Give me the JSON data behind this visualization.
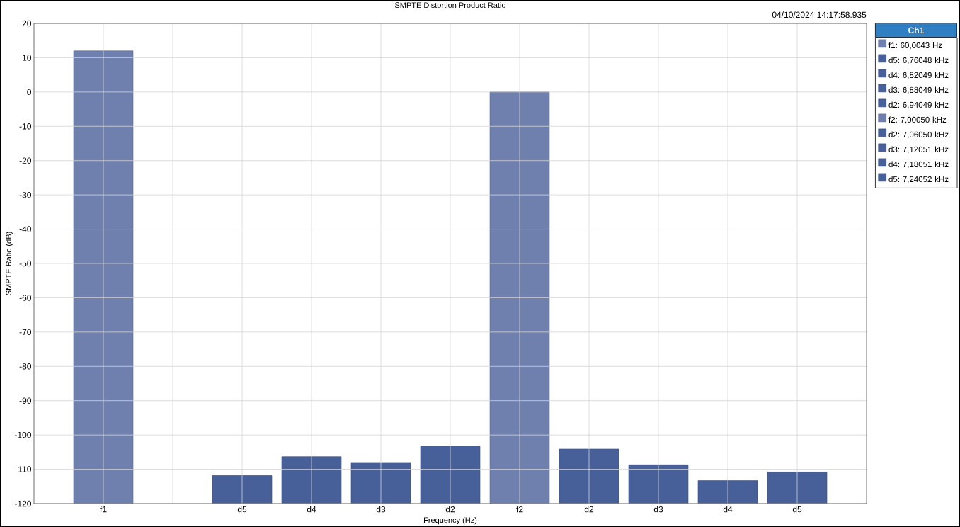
{
  "chart_data": {
    "type": "bar",
    "title": "SMPTE Distortion Product Ratio",
    "xlabel": "Frequency (Hz)",
    "ylabel": "SMPTE Ratio (dB)",
    "legend_title": "Ch1",
    "annotations": [
      "04/10/2024 14:17:58.935"
    ],
    "categories": [
      "f1",
      null,
      "d5",
      "d4",
      "d3",
      "d2",
      "f2",
      "d2",
      "d3",
      "d4",
      "d5"
    ],
    "series": [
      {
        "name": "f1: 60,0043 Hz",
        "color": "#6f80ae",
        "values": [
          132,
          null,
          null,
          null,
          null,
          null,
          null,
          null,
          null,
          null,
          null
        ],
        "base": [
          -120,
          null,
          null,
          null,
          null,
          null,
          null,
          null,
          null,
          null,
          null
        ]
      },
      {
        "name": "d5: 6,76048 kHz",
        "color": "#48609a",
        "values": [
          null,
          null,
          8.2,
          null,
          null,
          null,
          null,
          null,
          null,
          null,
          null
        ],
        "base": [
          null,
          null,
          -120,
          null,
          null,
          null,
          null,
          null,
          null,
          null,
          null
        ]
      },
      {
        "name": "d4: 6,82049 kHz",
        "color": "#48609a",
        "values": [
          null,
          null,
          null,
          13.7,
          null,
          null,
          null,
          null,
          null,
          null,
          null
        ],
        "base": [
          null,
          null,
          null,
          -120,
          null,
          null,
          null,
          null,
          null,
          null,
          null
        ]
      },
      {
        "name": "d3: 6,88049 kHz",
        "color": "#48609a",
        "values": [
          null,
          null,
          null,
          null,
          12.0,
          null,
          null,
          null,
          null,
          null,
          null
        ],
        "base": [
          null,
          null,
          null,
          null,
          -120,
          null,
          null,
          null,
          null,
          null,
          null
        ]
      },
      {
        "name": "d2: 6,94049 kHz",
        "color": "#48609a",
        "values": [
          null,
          null,
          null,
          null,
          null,
          16.8,
          null,
          null,
          null,
          null,
          null
        ],
        "base": [
          null,
          null,
          null,
          null,
          null,
          -120,
          null,
          null,
          null,
          null,
          null
        ]
      },
      {
        "name": "f2: 7,00050 kHz",
        "color": "#6f80ae",
        "values": [
          null,
          null,
          null,
          null,
          null,
          null,
          120,
          null,
          null,
          null,
          null
        ],
        "base": [
          null,
          null,
          null,
          null,
          null,
          null,
          -120,
          null,
          null,
          null,
          null
        ]
      },
      {
        "name": "d2: 7,06050 kHz",
        "color": "#48609a",
        "values": [
          null,
          null,
          null,
          null,
          null,
          null,
          null,
          15.9,
          null,
          null,
          null
        ],
        "base": [
          null,
          null,
          null,
          null,
          null,
          null,
          null,
          -120,
          null,
          null,
          null
        ]
      },
      {
        "name": "d3: 7,12051 kHz",
        "color": "#48609a",
        "values": [
          null,
          null,
          null,
          null,
          null,
          null,
          null,
          null,
          11.3,
          null,
          null
        ],
        "base": [
          null,
          null,
          null,
          null,
          null,
          null,
          null,
          null,
          -120,
          null,
          null
        ]
      },
      {
        "name": "d4: 7,18051 kHz",
        "color": "#48609a",
        "values": [
          null,
          null,
          null,
          null,
          null,
          null,
          null,
          null,
          null,
          6.7,
          null
        ],
        "base": [
          null,
          null,
          null,
          null,
          null,
          null,
          null,
          null,
          null,
          -120,
          null
        ]
      },
      {
        "name": "d5: 7,24052 kHz",
        "color": "#48609a",
        "values": [
          null,
          null,
          null,
          null,
          null,
          null,
          null,
          null,
          null,
          null,
          9.2
        ],
        "base": [
          null,
          null,
          null,
          null,
          null,
          null,
          null,
          null,
          null,
          null,
          -120
        ]
      }
    ],
    "ylim": [
      -120,
      20
    ],
    "yticks": [
      -120,
      -110,
      -100,
      -90,
      -80,
      -70,
      -60,
      -50,
      -40,
      -30,
      -20,
      -10,
      0,
      10,
      20
    ],
    "grid": true,
    "legend": "top right"
  }
}
